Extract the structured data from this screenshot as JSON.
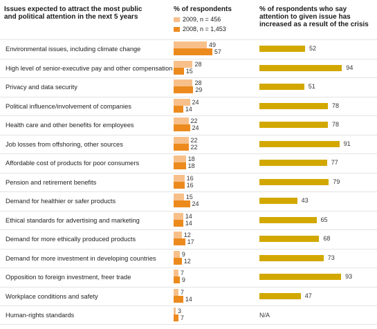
{
  "headers": {
    "col1": "Issues expected to attract the most public and political attention in the next 5 years",
    "col2": "% of respondents",
    "col3": "% of respondents who say attention to given issue has increased as a result of the crisis"
  },
  "legend": {
    "s2009": "2009, n = 456",
    "s2008": "2008, n = 1,453"
  },
  "colors": {
    "s2009": "#f7c08a",
    "s2008": "#ec8a1e",
    "attention": "#d2a800"
  },
  "chart_data": {
    "type": "bar",
    "categories": [
      "Environmental issues, including climate change",
      "High level of senior-executive pay and other compensation",
      "Privacy and data security",
      "Political influence/involvement of companies",
      "Health care and other benefits for employees",
      "Job losses from offshoring, other sources",
      "Affordable cost of products for poor consumers",
      "Pension and retirement benefits",
      "Demand for healthier or safer products",
      "Ethical standards for advertising and marketing",
      "Demand for more ethically produced products",
      "Demand for more investment in developing countries",
      "Opposition to foreign investment, freer trade",
      "Workplace conditions and safety",
      "Human-rights standards"
    ],
    "series": [
      {
        "name": "2009, n = 456",
        "values": [
          49,
          28,
          28,
          24,
          22,
          22,
          18,
          16,
          15,
          14,
          12,
          9,
          7,
          7,
          3
        ]
      },
      {
        "name": "2008, n = 1,453",
        "values": [
          57,
          15,
          29,
          14,
          24,
          22,
          18,
          16,
          24,
          14,
          17,
          12,
          9,
          14,
          7
        ]
      },
      {
        "name": "% of respondents who say attention to given issue has increased as a result of the crisis",
        "values": [
          52,
          94,
          51,
          78,
          78,
          91,
          77,
          79,
          43,
          65,
          68,
          73,
          93,
          47,
          null
        ]
      }
    ],
    "na_label": "N/A"
  }
}
